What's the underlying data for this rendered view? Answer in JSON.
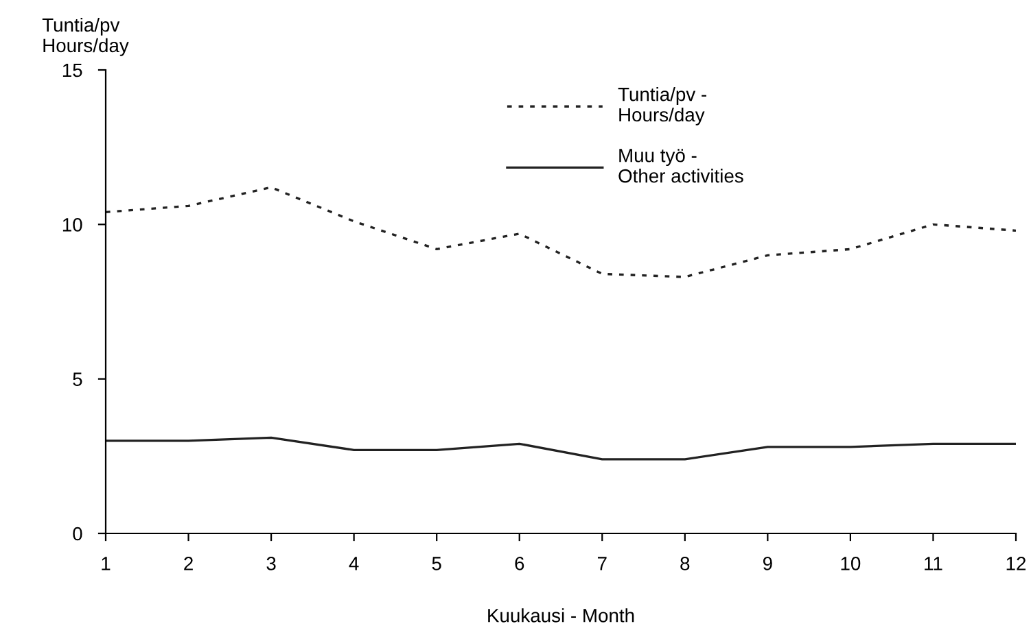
{
  "chart_data": {
    "type": "line",
    "ylabel": "Tuntia/pv\nHours/day",
    "xlabel": "Kuukausi - Month",
    "x": [
      1,
      2,
      3,
      4,
      5,
      6,
      7,
      8,
      9,
      10,
      11,
      12
    ],
    "series": [
      {
        "name": "Tuntia/pv -\nHours/day",
        "color": "#222222",
        "line_style": "dotted",
        "values": [
          10.4,
          10.6,
          11.2,
          10.1,
          9.2,
          9.7,
          8.4,
          8.3,
          9.0,
          9.2,
          10.0,
          9.8
        ]
      },
      {
        "name": "Muu työ -\nOther activities",
        "color": "#222222",
        "line_style": "solid",
        "values": [
          3.0,
          3.0,
          3.1,
          2.7,
          2.7,
          2.9,
          2.4,
          2.4,
          2.8,
          2.8,
          2.9,
          2.9
        ]
      }
    ],
    "xlim": [
      1,
      12
    ],
    "xticks": [
      1,
      2,
      3,
      4,
      5,
      6,
      7,
      8,
      9,
      10,
      11,
      12
    ],
    "ylim": [
      0,
      15
    ],
    "yticks": [
      0,
      5,
      10,
      15
    ],
    "grid": false,
    "legend": "top right",
    "marker": "none"
  }
}
